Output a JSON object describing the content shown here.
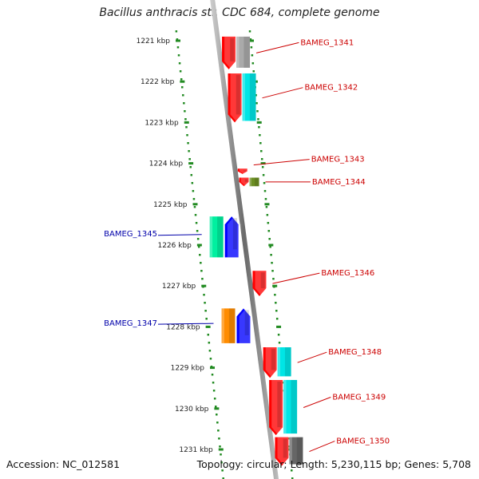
{
  "title": "Bacillus anthracis str. CDC 684, complete genome",
  "accession": "Accession: NC_012581",
  "summary": "Topology: circular; Length: 5,230,115 bp; Genes: 5,708",
  "colors": {
    "red": "#ff0000",
    "blue": "#0000ff",
    "cyan": "#00e5e5",
    "green": "#00f0a0",
    "orange": "#ff8c00",
    "olive": "#6b8e23",
    "gray": "#aaaaaa",
    "darkgray": "#666666",
    "tick": "#228b22",
    "label_forward": "#cc0000",
    "label_reverse": "#0000aa"
  },
  "axis": {
    "ticks": [
      {
        "label": "1221 kbp",
        "kbp": 1221
      },
      {
        "label": "1222 kbp",
        "kbp": 1222
      },
      {
        "label": "1223 kbp",
        "kbp": 1223
      },
      {
        "label": "1224 kbp",
        "kbp": 1224
      },
      {
        "label": "1225 kbp",
        "kbp": 1225
      },
      {
        "label": "1226 kbp",
        "kbp": 1226
      },
      {
        "label": "1227 kbp",
        "kbp": 1227
      },
      {
        "label": "1228 kbp",
        "kbp": 1228
      },
      {
        "label": "1229 kbp",
        "kbp": 1229
      },
      {
        "label": "1230 kbp",
        "kbp": 1230
      },
      {
        "label": "1231 kbp",
        "kbp": 1231
      }
    ]
  },
  "genes": [
    {
      "name": "BAMEG_1341",
      "strand": "+",
      "start": 1220.9,
      "end": 1221.7,
      "color": "red",
      "cog_color": "gray",
      "labeled": true
    },
    {
      "name": "BAMEG_1342",
      "strand": "+",
      "start": 1221.8,
      "end": 1223.0,
      "color": "red",
      "cog_color": "cyan",
      "labeled": true
    },
    {
      "name": "BAMEG_1343",
      "strand": "+",
      "start": 1224.13,
      "end": 1224.26,
      "color": "red",
      "cog_color": "",
      "labeled": true
    },
    {
      "name": "BAMEG_1344",
      "strand": "+",
      "start": 1224.35,
      "end": 1224.56,
      "color": "red",
      "cog_color": "olive",
      "labeled": true
    },
    {
      "name": "BAMEG_1345",
      "strand": "-",
      "start": 1225.3,
      "end": 1226.3,
      "color": "blue",
      "cog_color": "green",
      "labeled": true
    },
    {
      "name": "BAMEG_1346",
      "strand": "+",
      "start": 1226.63,
      "end": 1227.25,
      "color": "red",
      "cog_color": "",
      "labeled": true
    },
    {
      "name": "BAMEG_1347",
      "strand": "-",
      "start": 1227.55,
      "end": 1228.4,
      "color": "blue",
      "cog_color": "orange",
      "labeled": true
    },
    {
      "name": "BAMEG_1348",
      "strand": "+",
      "start": 1228.5,
      "end": 1229.25,
      "color": "red",
      "cog_color": "cyan",
      "labeled": true
    },
    {
      "name": "BAMEG_1349",
      "strand": "+",
      "start": 1229.3,
      "end": 1230.65,
      "color": "red",
      "cog_color": "cyan",
      "labeled": true
    },
    {
      "name": "BAMEG_1350",
      "strand": "+",
      "start": 1230.7,
      "end": 1231.4,
      "color": "red",
      "cog_color": "darkgray",
      "labeled": true
    }
  ]
}
